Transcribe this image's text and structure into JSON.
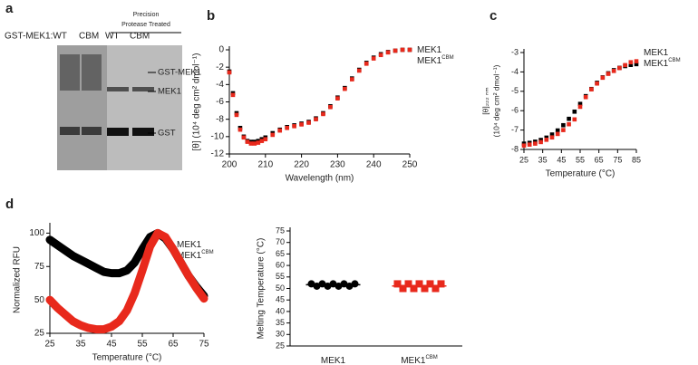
{
  "panel_labels": [
    "a",
    "b",
    "c",
    "d"
  ],
  "gel": {
    "lane_header": "GST-MEK1:WT",
    "lanes": [
      "CBM",
      "WT",
      "CBM"
    ],
    "treatment": [
      "Precision",
      "Protease Treated"
    ],
    "bands": [
      "GST-MEK1",
      "MEK1",
      "GST"
    ]
  },
  "chart_data": [
    {
      "type": "scatter",
      "x_label": "Wavelength (nm)",
      "y_label": "[θ] (10⁴ deg cm² dmol⁻¹)",
      "x": [
        200,
        201,
        202,
        203,
        204,
        205,
        206,
        207,
        208,
        209,
        210,
        212,
        214,
        216,
        218,
        220,
        222,
        224,
        226,
        228,
        230,
        232,
        234,
        236,
        238,
        240,
        242,
        244,
        246,
        248,
        250
      ],
      "series": [
        {
          "name": "MEK1",
          "color": "#000000",
          "values": [
            -2.5,
            -5,
            -7.3,
            -9,
            -10,
            -10.5,
            -10.6,
            -10.6,
            -10.5,
            -10.3,
            -10.1,
            -9.6,
            -9.2,
            -8.9,
            -8.7,
            -8.5,
            -8.3,
            -7.9,
            -7.3,
            -6.5,
            -5.5,
            -4.4,
            -3.3,
            -2.3,
            -1.5,
            -0.9,
            -0.5,
            -0.25,
            -0.1,
            0,
            0
          ]
        },
        {
          "name": "MEK1",
          "superscript": "CBM",
          "color": "#e8291c",
          "values": [
            -2.6,
            -5.2,
            -7.5,
            -9.2,
            -10.1,
            -10.6,
            -10.8,
            -10.8,
            -10.7,
            -10.5,
            -10.3,
            -9.8,
            -9.3,
            -9,
            -8.8,
            -8.6,
            -8.4,
            -8,
            -7.4,
            -6.6,
            -5.6,
            -4.5,
            -3.4,
            -2.4,
            -1.6,
            -1,
            -0.6,
            -0.3,
            -0.1,
            0,
            0
          ]
        }
      ],
      "xlim": [
        200,
        250
      ],
      "xticks": [
        200,
        210,
        220,
        230,
        240,
        250
      ],
      "ylim": [
        -12,
        0
      ],
      "yticks": [
        -12,
        -10,
        -8,
        -6,
        -4,
        -2,
        0
      ]
    },
    {
      "type": "scatter",
      "x_label": "Temperature (°C)",
      "y_label": [
        "[θ]₂₂₂ ₙₘ",
        "(10⁴ deg cm² dmol⁻¹)"
      ],
      "x": [
        25,
        28,
        31,
        34,
        37,
        40,
        43,
        46,
        49,
        52,
        55,
        58,
        61,
        64,
        67,
        70,
        73,
        76,
        79,
        82,
        85
      ],
      "series": [
        {
          "name": "MEK1",
          "color": "#000000",
          "values": [
            -7.7,
            -7.66,
            -7.6,
            -7.51,
            -7.39,
            -7.23,
            -7.02,
            -6.75,
            -6.42,
            -6.05,
            -5.65,
            -5.25,
            -4.88,
            -4.56,
            -4.28,
            -4.07,
            -3.91,
            -3.79,
            -3.7,
            -3.64,
            -3.6
          ]
        },
        {
          "name": "MEK1",
          "superscript": "CBM",
          "color": "#e8291c",
          "values": [
            -7.8,
            -7.75,
            -7.7,
            -7.62,
            -7.5,
            -7.38,
            -7.2,
            -7.0,
            -6.7,
            -6.45,
            -5.8,
            -5.3,
            -4.9,
            -4.6,
            -4.3,
            -4.1,
            -3.95,
            -3.8,
            -3.65,
            -3.5,
            -3.45
          ]
        }
      ],
      "xlim": [
        25,
        85
      ],
      "xticks": [
        25,
        35,
        45,
        55,
        65,
        75,
        85
      ],
      "ylim": [
        -8,
        -3
      ],
      "yticks": [
        -8,
        -7,
        -6,
        -5,
        -4,
        -3
      ]
    },
    {
      "type": "line",
      "x_label": "Temperature (°C)",
      "y_label": "Normalized RFU",
      "x": [
        25,
        27.5,
        30,
        32.5,
        35,
        37.5,
        40,
        42.5,
        45,
        47.5,
        50,
        52.5,
        55,
        57.5,
        60,
        62.5,
        65,
        67.5,
        70,
        72.5,
        75
      ],
      "series": [
        {
          "name": "MEK1",
          "color": "#000000",
          "values": [
            95,
            91,
            87,
            83,
            80,
            77,
            74,
            71,
            70,
            70,
            72,
            78,
            88,
            97,
            100,
            96,
            88,
            78,
            68,
            60,
            53
          ]
        },
        {
          "name": "MEK1",
          "superscript": "CBM",
          "color": "#e8291c",
          "values": [
            50,
            44,
            39,
            34,
            31,
            29,
            28,
            28,
            30,
            34,
            42,
            55,
            72,
            90,
            100,
            97,
            88,
            78,
            68,
            59,
            51
          ]
        }
      ],
      "xlim": [
        25,
        75
      ],
      "xticks": [
        25,
        35,
        45,
        55,
        65,
        75
      ],
      "ylim": [
        25,
        105
      ],
      "yticks": [
        25,
        50,
        75,
        100
      ]
    },
    {
      "type": "strip",
      "y_label": "Melting Temperature (°C)",
      "categories": [
        "MEK1",
        "MEK1"
      ],
      "category_superscripts": [
        null,
        "CBM"
      ],
      "colors": [
        "#000000",
        "#e8291c"
      ],
      "values": [
        [
          52,
          51,
          52,
          51,
          52,
          51,
          52,
          51,
          52
        ],
        [
          52,
          50,
          52,
          50,
          52,
          50,
          52,
          50,
          52
        ]
      ],
      "means": [
        51.6,
        51.1
      ],
      "ylim": [
        25,
        75
      ],
      "yticks": [
        25,
        30,
        35,
        40,
        45,
        50,
        55,
        60,
        65,
        70,
        75
      ]
    }
  ]
}
